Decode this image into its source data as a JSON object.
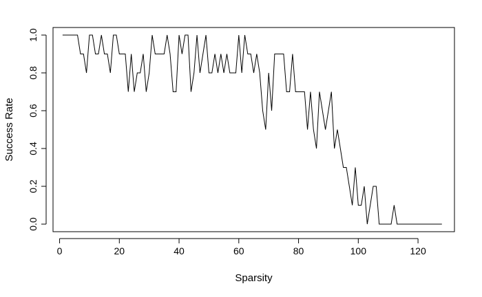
{
  "chart_data": {
    "type": "line",
    "title": "",
    "xlabel": "Sparsity",
    "ylabel": "Success Rate",
    "xlim": [
      -2.2,
      132.2
    ],
    "ylim": [
      -0.04,
      1.04
    ],
    "x_ticks": [
      0,
      20,
      40,
      60,
      80,
      100,
      120
    ],
    "x_tick_labels": [
      "0",
      "20",
      "40",
      "60",
      "80",
      "100",
      "120"
    ],
    "y_ticks": [
      0.0,
      0.2,
      0.4,
      0.6,
      0.8,
      1.0
    ],
    "y_tick_labels": [
      "0.0",
      "0.2",
      "0.4",
      "0.6",
      "0.8",
      "1.0"
    ],
    "grid": false,
    "legend": "none",
    "line_color": "#000000",
    "series": [
      {
        "x": [
          1,
          2,
          3,
          4,
          5,
          6,
          7,
          8,
          9,
          10,
          11,
          12,
          13,
          14,
          15,
          16,
          17,
          18,
          19,
          20,
          21,
          22,
          23,
          24,
          25,
          26,
          27,
          28,
          29,
          30,
          31,
          32,
          33,
          34,
          35,
          36,
          37,
          38,
          39,
          40,
          41,
          42,
          43,
          44,
          45,
          46,
          47,
          48,
          49,
          50,
          51,
          52,
          53,
          54,
          55,
          56,
          57,
          58,
          59,
          60,
          61,
          62,
          63,
          64,
          65,
          66,
          67,
          68,
          69,
          70,
          71,
          72,
          73,
          74,
          75,
          76,
          77,
          78,
          79,
          80,
          81,
          82,
          83,
          84,
          85,
          86,
          87,
          88,
          89,
          90,
          91,
          92,
          93,
          94,
          95,
          96,
          97,
          98,
          99,
          100,
          101,
          102,
          103,
          104,
          105,
          106,
          107,
          108,
          109,
          110,
          111,
          112,
          113,
          114,
          115,
          116,
          117,
          118,
          119,
          120,
          121,
          122,
          123,
          124,
          125,
          126,
          127,
          128
        ],
        "values": [
          1.0,
          1.0,
          1.0,
          1.0,
          1.0,
          1.0,
          0.9,
          0.9,
          0.8,
          1.0,
          1.0,
          0.9,
          0.9,
          1.0,
          0.9,
          0.9,
          0.8,
          1.0,
          1.0,
          0.9,
          0.9,
          0.9,
          0.7,
          0.9,
          0.7,
          0.8,
          0.8,
          0.9,
          0.7,
          0.8,
          1.0,
          0.9,
          0.9,
          0.9,
          0.9,
          1.0,
          0.9,
          0.7,
          0.7,
          1.0,
          0.9,
          1.0,
          1.0,
          0.7,
          0.8,
          1.0,
          0.8,
          0.9,
          1.0,
          0.8,
          0.8,
          0.9,
          0.8,
          0.9,
          0.8,
          0.9,
          0.8,
          0.8,
          0.8,
          1.0,
          0.8,
          1.0,
          0.9,
          0.9,
          0.8,
          0.9,
          0.8,
          0.6,
          0.5,
          0.8,
          0.6,
          0.9,
          0.9,
          0.9,
          0.9,
          0.7,
          0.7,
          0.9,
          0.7,
          0.7,
          0.7,
          0.7,
          0.5,
          0.7,
          0.5,
          0.4,
          0.7,
          0.6,
          0.5,
          0.6,
          0.7,
          0.4,
          0.5,
          0.4,
          0.3,
          0.3,
          0.2,
          0.1,
          0.3,
          0.1,
          0.1,
          0.2,
          0.0,
          0.1,
          0.2,
          0.2,
          0.0,
          0.0,
          0.0,
          0.0,
          0.0,
          0.1,
          0.0,
          0.0,
          0.0,
          0.0,
          0.0,
          0.0,
          0.0,
          0.0,
          0.0,
          0.0,
          0.0,
          0.0,
          0.0,
          0.0,
          0.0,
          0.0
        ]
      }
    ]
  }
}
